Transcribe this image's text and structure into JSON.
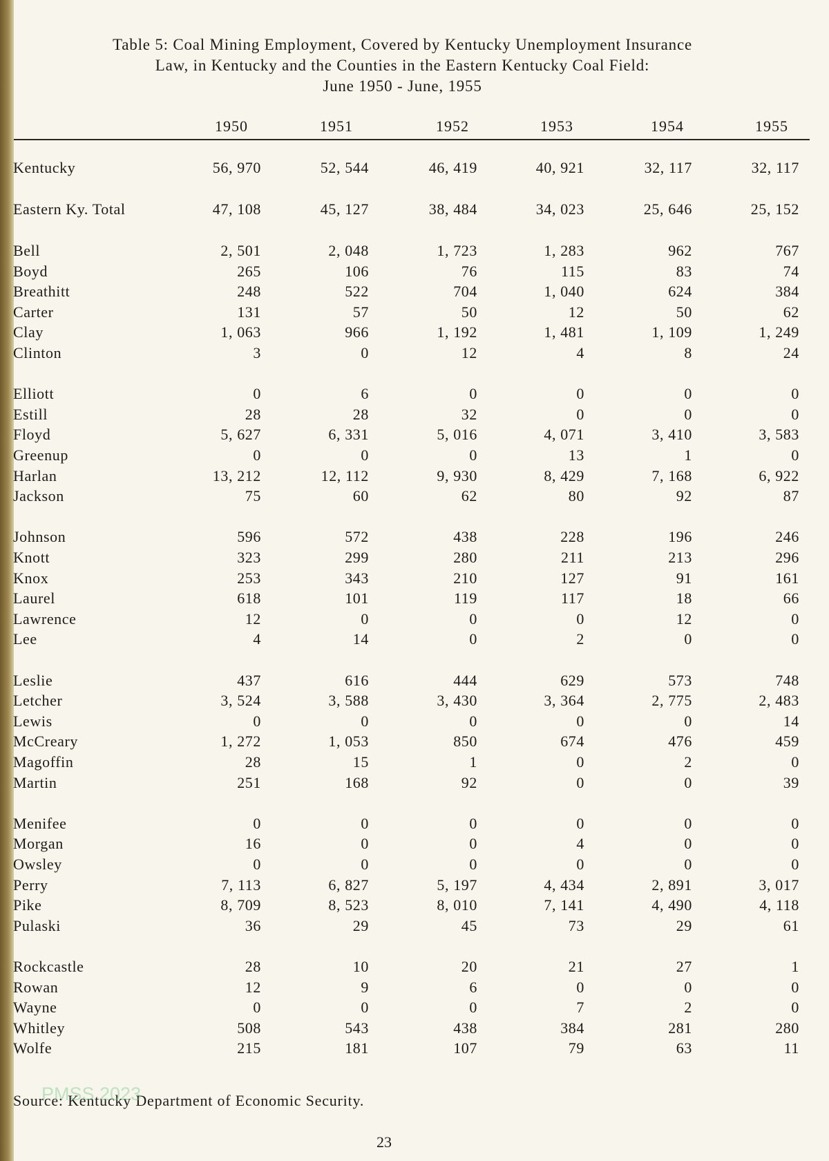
{
  "title": {
    "line1": "Table 5:  Coal Mining Employment, Covered by Kentucky Unemployment Insurance",
    "line2": "Law, in Kentucky and the Counties in the Eastern Kentucky Coal Field:",
    "line3": "June 1950 - June, 1955"
  },
  "columns": [
    "1950",
    "1951",
    "1952",
    "1953",
    "1954",
    "1955"
  ],
  "summary_rows": [
    {
      "label": "Kentucky",
      "values": [
        "56, 970",
        "52, 544",
        "46, 419",
        "40, 921",
        "32, 117",
        "32, 117"
      ]
    },
    {
      "label": "Eastern Ky.  Total",
      "values": [
        "47, 108",
        "45, 127",
        "38, 484",
        "34, 023",
        "25, 646",
        "25, 152"
      ]
    }
  ],
  "county_groups": [
    [
      {
        "label": "Bell",
        "values": [
          "2, 501",
          "2, 048",
          "1, 723",
          "1, 283",
          "962",
          "767"
        ]
      },
      {
        "label": "Boyd",
        "values": [
          "265",
          "106",
          "76",
          "115",
          "83",
          "74"
        ]
      },
      {
        "label": "Breathitt",
        "values": [
          "248",
          "522",
          "704",
          "1, 040",
          "624",
          "384"
        ]
      },
      {
        "label": "Carter",
        "values": [
          "131",
          "57",
          "50",
          "12",
          "50",
          "62"
        ]
      },
      {
        "label": "Clay",
        "values": [
          "1, 063",
          "966",
          "1, 192",
          "1, 481",
          "1, 109",
          "1, 249"
        ]
      },
      {
        "label": "Clinton",
        "values": [
          "3",
          "0",
          "12",
          "4",
          "8",
          "24"
        ]
      }
    ],
    [
      {
        "label": "Elliott",
        "values": [
          "0",
          "6",
          "0",
          "0",
          "0",
          "0"
        ]
      },
      {
        "label": "Estill",
        "values": [
          "28",
          "28",
          "32",
          "0",
          "0",
          "0"
        ]
      },
      {
        "label": "Floyd",
        "values": [
          "5, 627",
          "6, 331",
          "5, 016",
          "4, 071",
          "3, 410",
          "3, 583"
        ]
      },
      {
        "label": "Greenup",
        "values": [
          "0",
          "0",
          "0",
          "13",
          "1",
          "0"
        ]
      },
      {
        "label": "Harlan",
        "values": [
          "13, 212",
          "12, 112",
          "9, 930",
          "8, 429",
          "7, 168",
          "6, 922"
        ]
      },
      {
        "label": "Jackson",
        "values": [
          "75",
          "60",
          "62",
          "80",
          "92",
          "87"
        ]
      }
    ],
    [
      {
        "label": "Johnson",
        "values": [
          "596",
          "572",
          "438",
          "228",
          "196",
          "246"
        ]
      },
      {
        "label": "Knott",
        "values": [
          "323",
          "299",
          "280",
          "211",
          "213",
          "296"
        ]
      },
      {
        "label": "Knox",
        "values": [
          "253",
          "343",
          "210",
          "127",
          "91",
          "161"
        ]
      },
      {
        "label": "Laurel",
        "values": [
          "618",
          "101",
          "119",
          "117",
          "18",
          "66"
        ]
      },
      {
        "label": "Lawrence",
        "values": [
          "12",
          "0",
          "0",
          "0",
          "12",
          "0"
        ]
      },
      {
        "label": "Lee",
        "values": [
          "4",
          "14",
          "0",
          "2",
          "0",
          "0"
        ]
      }
    ],
    [
      {
        "label": "Leslie",
        "values": [
          "437",
          "616",
          "444",
          "629",
          "573",
          "748"
        ]
      },
      {
        "label": "Letcher",
        "values": [
          "3, 524",
          "3, 588",
          "3, 430",
          "3, 364",
          "2, 775",
          "2, 483"
        ]
      },
      {
        "label": "Lewis",
        "values": [
          "0",
          "0",
          "0",
          "0",
          "0",
          "14"
        ]
      },
      {
        "label": "McCreary",
        "values": [
          "1, 272",
          "1, 053",
          "850",
          "674",
          "476",
          "459"
        ]
      },
      {
        "label": "Magoffin",
        "values": [
          "28",
          "15",
          "1",
          "0",
          "2",
          "0"
        ]
      },
      {
        "label": "Martin",
        "values": [
          "251",
          "168",
          "92",
          "0",
          "0",
          "39"
        ]
      }
    ],
    [
      {
        "label": "Menifee",
        "values": [
          "0",
          "0",
          "0",
          "0",
          "0",
          "0"
        ]
      },
      {
        "label": "Morgan",
        "values": [
          "16",
          "0",
          "0",
          "4",
          "0",
          "0"
        ]
      },
      {
        "label": "Owsley",
        "values": [
          "0",
          "0",
          "0",
          "0",
          "0",
          "0"
        ]
      },
      {
        "label": "Perry",
        "values": [
          "7, 113",
          "6, 827",
          "5, 197",
          "4, 434",
          "2, 891",
          "3, 017"
        ]
      },
      {
        "label": "Pike",
        "values": [
          "8, 709",
          "8, 523",
          "8, 010",
          "7, 141",
          "4, 490",
          "4, 118"
        ]
      },
      {
        "label": "Pulaski",
        "values": [
          "36",
          "29",
          "45",
          "73",
          "29",
          "61"
        ]
      }
    ],
    [
      {
        "label": "Rockcastle",
        "values": [
          "28",
          "10",
          "20",
          "21",
          "27",
          "1"
        ]
      },
      {
        "label": "Rowan",
        "values": [
          "12",
          "9",
          "6",
          "0",
          "0",
          "0"
        ]
      },
      {
        "label": "Wayne",
        "values": [
          "0",
          "0",
          "0",
          "7",
          "2",
          "0"
        ]
      },
      {
        "label": "Whitley",
        "values": [
          "508",
          "543",
          "438",
          "384",
          "281",
          "280"
        ]
      },
      {
        "label": "Wolfe",
        "values": [
          "215",
          "181",
          "107",
          "79",
          "63",
          "11"
        ]
      }
    ]
  ],
  "source": "Source:  Kentucky Department of Economic Security.",
  "page_number": "23",
  "watermark": "PMSS 2023"
}
